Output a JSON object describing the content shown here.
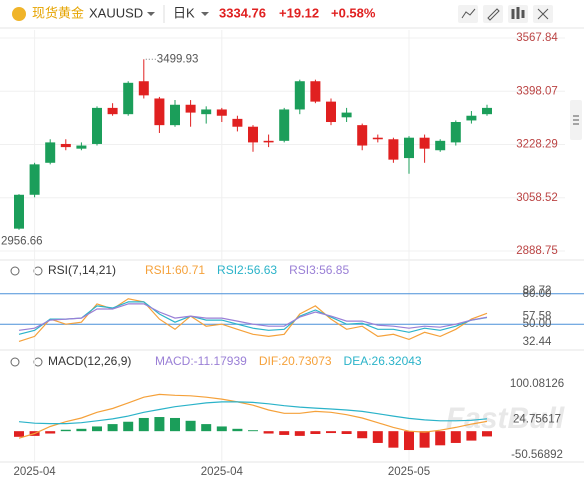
{
  "header": {
    "name": "现货黄金",
    "symbol": "XAUUSD",
    "period": "日K",
    "price": "3334.76",
    "change": "+19.12",
    "change_pct": "+0.58%"
  },
  "watermark": "FastBull",
  "chart_data": [
    {
      "type": "candlestick",
      "categories": [
        null,
        "2025-04",
        null,
        null,
        null,
        null,
        null,
        null,
        null,
        null,
        null,
        null,
        null,
        "2025-04",
        null,
        null,
        null,
        null,
        null,
        null,
        null,
        null,
        null,
        null,
        null,
        "2025-05",
        null,
        null,
        null,
        null,
        null
      ],
      "open": [
        2960,
        3068,
        3170,
        3230,
        3215,
        3230,
        3345,
        3325,
        3430,
        3375,
        3290,
        3355,
        3325,
        3340,
        3310,
        3285,
        3240,
        3240,
        3340,
        3430,
        3365,
        3315,
        3290,
        3250,
        3245,
        3185,
        3250,
        3210,
        3235,
        3305,
        3325
      ],
      "high": [
        3070,
        3170,
        3245,
        3245,
        3235,
        3350,
        3360,
        3430,
        3499.93,
        3380,
        3370,
        3370,
        3350,
        3345,
        3320,
        3290,
        3260,
        3345,
        3435,
        3435,
        3375,
        3345,
        3295,
        3260,
        3250,
        3255,
        3260,
        3245,
        3305,
        3335,
        3355
      ],
      "low": [
        2956.66,
        3060,
        3165,
        3210,
        3210,
        3225,
        3320,
        3320,
        3375,
        3265,
        3285,
        3285,
        3295,
        3300,
        3270,
        3205,
        3220,
        3235,
        3325,
        3360,
        3290,
        3300,
        3210,
        3235,
        3170,
        3135,
        3170,
        3205,
        3225,
        3295,
        3320
      ],
      "close": [
        3068,
        3165,
        3235,
        3220,
        3225,
        3345,
        3325,
        3425,
        3385,
        3290,
        3355,
        3330,
        3340,
        3320,
        3285,
        3235,
        3235,
        3340,
        3430,
        3365,
        3300,
        3330,
        3225,
        3245,
        3180,
        3250,
        3215,
        3240,
        3300,
        3320,
        3345
      ],
      "up_color": "#1b9e5a",
      "down_color": "#e02020",
      "ylim": [
        2888.75,
        3567.84
      ],
      "yticks": [
        3567.84,
        3398.07,
        3228.29,
        3058.52,
        2888.75
      ],
      "grid": true
    },
    {
      "type": "line",
      "title": "RSI(7,14,21)",
      "series": [
        {
          "name": "RSI1:60.71",
          "color": "#f5a13a",
          "values": [
            33,
            38,
            55,
            50,
            52,
            70,
            65,
            75,
            72,
            55,
            45,
            58,
            48,
            50,
            45,
            40,
            38,
            40,
            60,
            68,
            55,
            45,
            48,
            38,
            40,
            35,
            42,
            38,
            45,
            55,
            60.71
          ]
        },
        {
          "name": "RSI2:56.63",
          "color": "#2bb3c9",
          "values": [
            40,
            44,
            55,
            55,
            56,
            68,
            66,
            72,
            72,
            60,
            52,
            58,
            54,
            54,
            50,
            46,
            44,
            45,
            58,
            64,
            57,
            50,
            51,
            45,
            45,
            42,
            46,
            44,
            48,
            54,
            56.63
          ]
        },
        {
          "name": "RSI3:56.85",
          "color": "#9a7fd6",
          "values": [
            44,
            46,
            54,
            55,
            56,
            65,
            65,
            70,
            70,
            62,
            56,
            58,
            56,
            56,
            53,
            50,
            48,
            48,
            57,
            62,
            58,
            53,
            53,
            49,
            48,
            46,
            48,
            47,
            50,
            54,
            56.85
          ]
        }
      ],
      "ylim": [
        32.44,
        82.72
      ],
      "yticks": [
        {
          "value": 80,
          "label": "80.00"
        },
        82.72,
        57.58,
        {
          "value": 50,
          "label": "50.00"
        },
        32.44
      ],
      "grid_ticks": [
        0,
        3
      ]
    },
    {
      "type": "macd",
      "title": "MACD(12,26,9)",
      "series": [
        {
          "name": "MACD:-11.17939",
          "color": "#9a7fd6",
          "up_color": "#1b9e5a",
          "down_color": "#e02020",
          "values": [
            -12,
            -10,
            -5,
            3,
            5,
            10,
            15,
            20,
            28,
            30,
            28,
            22,
            15,
            10,
            5,
            2,
            -5,
            -8,
            -10,
            -6,
            -4,
            -6,
            -15,
            -25,
            -35,
            -40,
            -35,
            -30,
            -25,
            -20,
            -11.17939
          ]
        },
        {
          "name": "DIF:20.73073",
          "color": "#f5a13a",
          "values": [
            -15,
            -5,
            10,
            20,
            28,
            40,
            48,
            60,
            72,
            78,
            76,
            75,
            72,
            68,
            62,
            55,
            45,
            38,
            38,
            42,
            40,
            35,
            28,
            18,
            8,
            0,
            -2,
            2,
            8,
            15,
            20.73073
          ]
        },
        {
          "name": "DEA:26.32043",
          "color": "#2bb3c9",
          "values": [
            20,
            17,
            16,
            16,
            18,
            22,
            26,
            32,
            40,
            46,
            52,
            56,
            60,
            62,
            62,
            61,
            58,
            54,
            51,
            49,
            47,
            45,
            42,
            37,
            32,
            27,
            24,
            22,
            22,
            23,
            26.32043
          ]
        }
      ],
      "ylim": [
        -50.56892,
        100.08126
      ],
      "yticks": [
        100.08126,
        24.75617,
        -50.56892
      ]
    }
  ]
}
